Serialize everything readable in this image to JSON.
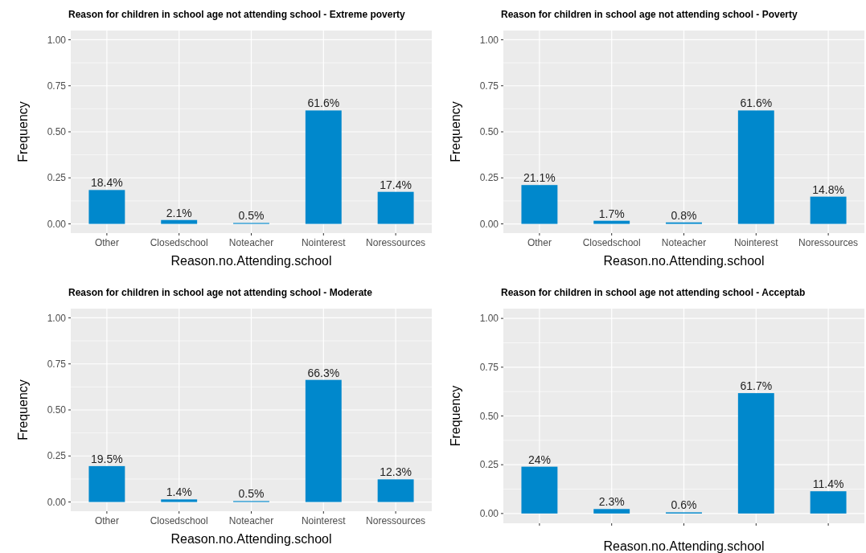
{
  "chart_data": [
    {
      "type": "bar",
      "title": "Reason for children in school age not attending school - Extreme poverty",
      "xlabel": "Reason.no.Attending.school",
      "ylabel": "Frequency",
      "categories": [
        "Other",
        "Closedschool",
        "Noteacher",
        "Nointerest",
        "Noressources"
      ],
      "values": [
        0.184,
        0.021,
        0.005,
        0.616,
        0.174
      ],
      "value_labels": [
        "18.4%",
        "2.1%",
        "0.5%",
        "61.6%",
        "17.4%"
      ],
      "color": "#0088cc",
      "ylim": [
        -0.05,
        1.05
      ],
      "yticks": [
        {
          "value": 0,
          "label": "0.00"
        },
        {
          "value": 0.25,
          "label": "0.25"
        },
        {
          "value": 0.5,
          "label": "0.50"
        },
        {
          "value": 0.75,
          "label": "0.75"
        },
        {
          "value": 1,
          "label": "1.00"
        }
      ],
      "grid": true
    },
    {
      "type": "bar",
      "title": "Reason for children in school age not attending school - Poverty",
      "xlabel": "Reason.no.Attending.school",
      "ylabel": "Frequency",
      "categories": [
        "Other",
        "Closedschool",
        "Noteacher",
        "Nointerest",
        "Noressources"
      ],
      "values": [
        0.211,
        0.017,
        0.008,
        0.616,
        0.148
      ],
      "value_labels": [
        "21.1%",
        "1.7%",
        "0.8%",
        "61.6%",
        "14.8%"
      ],
      "color": "#0088cc",
      "ylim": [
        -0.05,
        1.05
      ],
      "yticks": [
        {
          "value": 0,
          "label": "0.00"
        },
        {
          "value": 0.25,
          "label": "0.25"
        },
        {
          "value": 0.5,
          "label": "0.50"
        },
        {
          "value": 0.75,
          "label": "0.75"
        },
        {
          "value": 1,
          "label": "1.00"
        }
      ],
      "grid": true
    },
    {
      "type": "bar",
      "title": "Reason for children in school age not attending school - Moderate",
      "xlabel": "Reason.no.Attending.school",
      "ylabel": "Frequency",
      "categories": [
        "Other",
        "Closedschool",
        "Noteacher",
        "Nointerest",
        "Noressources"
      ],
      "values": [
        0.195,
        0.014,
        0.005,
        0.663,
        0.123
      ],
      "value_labels": [
        "19.5%",
        "1.4%",
        "0.5%",
        "66.3%",
        "12.3%"
      ],
      "color": "#0088cc",
      "ylim": [
        -0.05,
        1.05
      ],
      "yticks": [
        {
          "value": 0,
          "label": "0.00"
        },
        {
          "value": 0.25,
          "label": "0.25"
        },
        {
          "value": 0.5,
          "label": "0.50"
        },
        {
          "value": 0.75,
          "label": "0.75"
        },
        {
          "value": 1,
          "label": "1.00"
        }
      ],
      "grid": true
    },
    {
      "type": "bar",
      "title": "Reason for children in school age not attending school - Acceptab",
      "xlabel": "Reason.no.Attending.school",
      "ylabel": "Frequency",
      "categories": [
        null,
        null,
        null,
        null,
        null
      ],
      "values": [
        0.24,
        0.023,
        0.006,
        0.617,
        0.114
      ],
      "value_labels": [
        "24%",
        "2.3%",
        "0.6%",
        "61.7%",
        "11.4%"
      ],
      "color": "#0088cc",
      "ylim": [
        -0.05,
        1.05
      ],
      "yticks": [
        {
          "value": 0,
          "label": "0.00"
        },
        {
          "value": 0.25,
          "label": "0.25"
        },
        {
          "value": 0.5,
          "label": "0.50"
        },
        {
          "value": 0.75,
          "label": "0.75"
        },
        {
          "value": 1,
          "label": "1.00"
        }
      ],
      "grid": true,
      "tick_labels": "y"
    }
  ]
}
